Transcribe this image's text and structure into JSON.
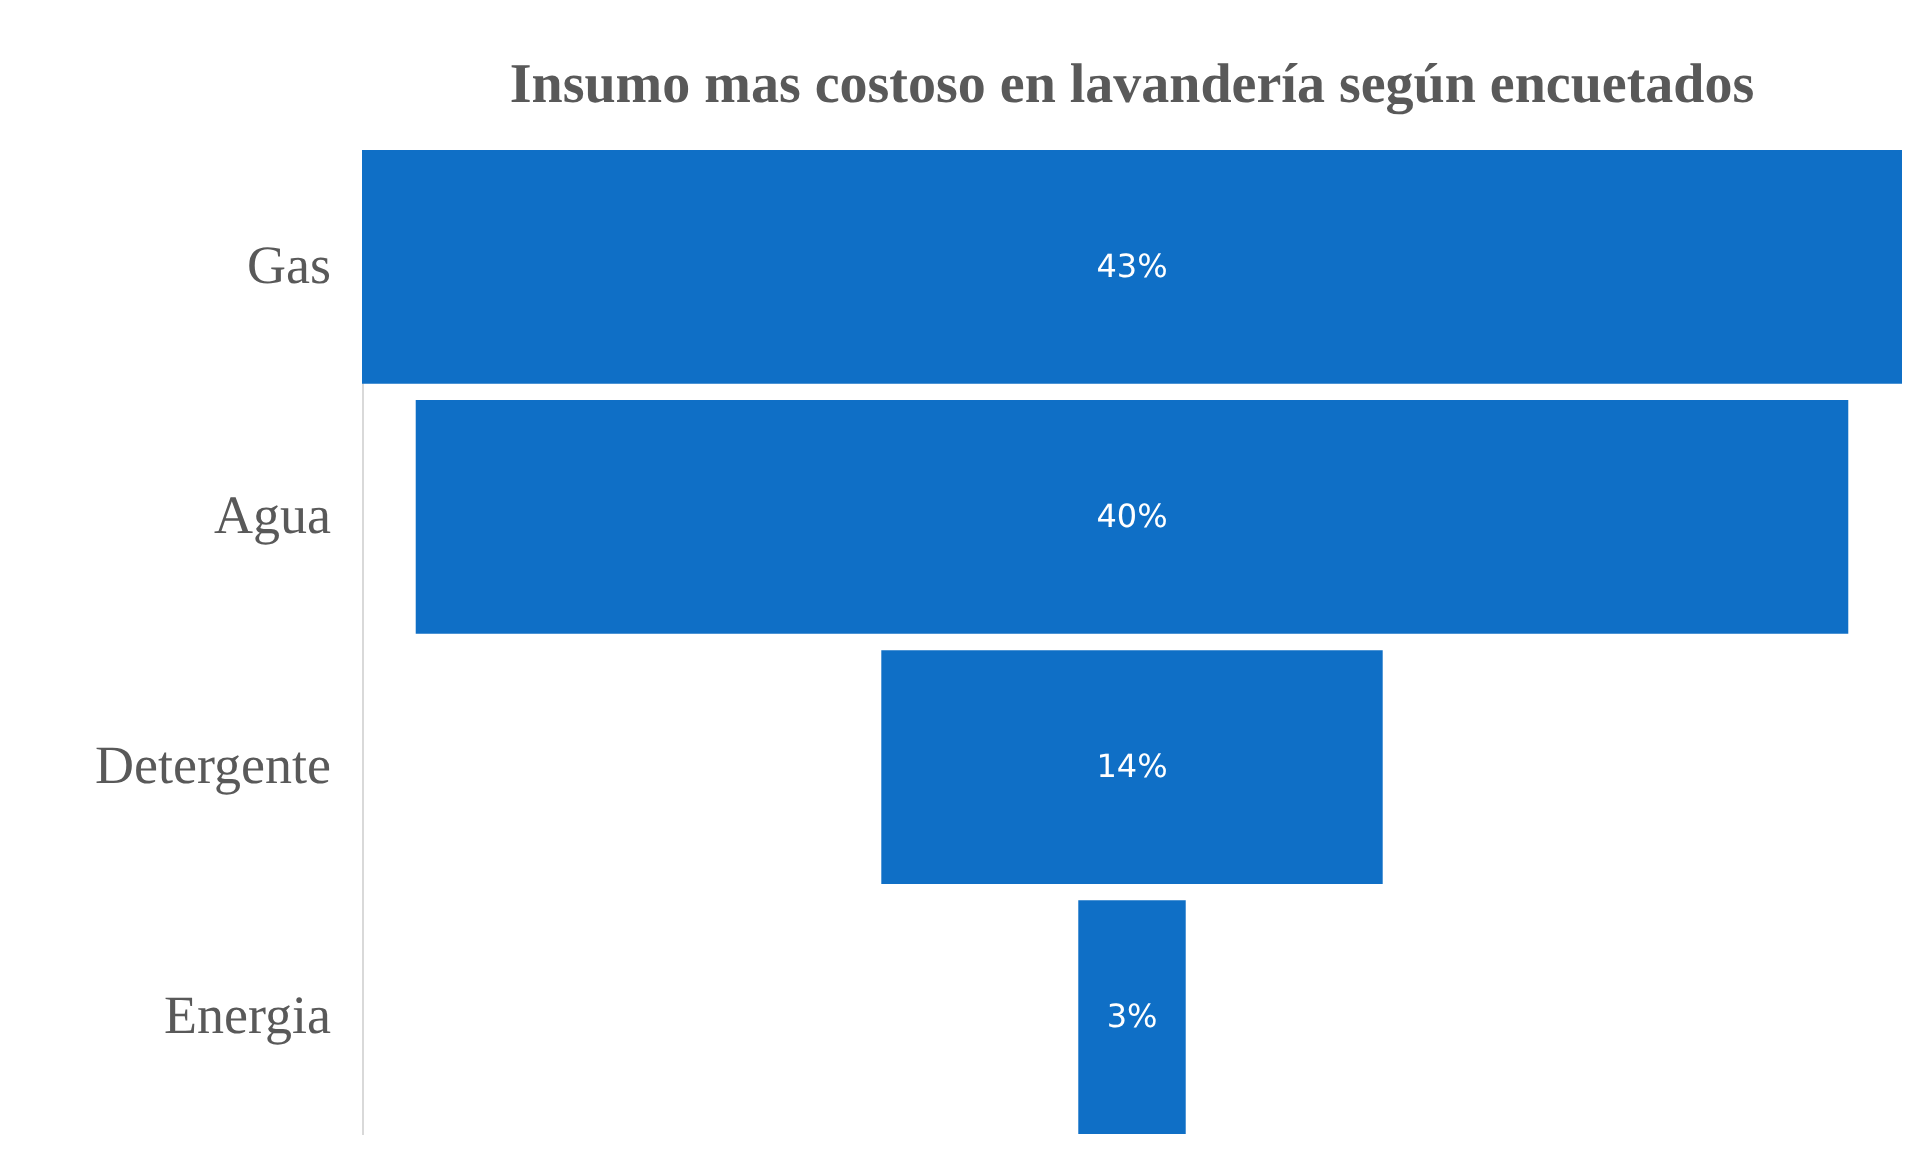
{
  "chart_data": {
    "type": "other",
    "title": "Insumo mas costoso en lavandería según encuetados",
    "categories": [
      "Gas",
      "Agua",
      "Detergente",
      "Energia"
    ],
    "values": [
      43,
      40,
      14,
      3
    ],
    "value_labels": [
      "43%",
      "40%",
      "14%",
      "3%"
    ],
    "color": "#0f6fc6"
  }
}
